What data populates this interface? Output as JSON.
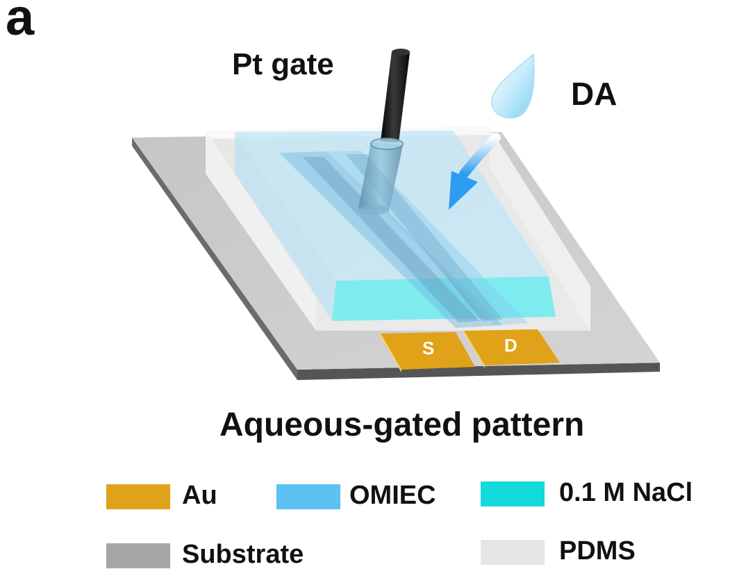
{
  "panel_label": "a",
  "labels": {
    "gate": "Pt gate",
    "analyte": "DA",
    "source": "S",
    "drain": "D",
    "caption": "Aqueous-gated pattern"
  },
  "legend": [
    {
      "label": "Au",
      "color": "#E0A218"
    },
    {
      "label": "OMIEC",
      "color": "#5BC2F2"
    },
    {
      "label": "0.1 M NaCl",
      "color": "#12DADA"
    },
    {
      "label": "Substrate",
      "color": "#A7A5A6"
    },
    {
      "label": "PDMS",
      "color": "#E6E6E8"
    }
  ]
}
